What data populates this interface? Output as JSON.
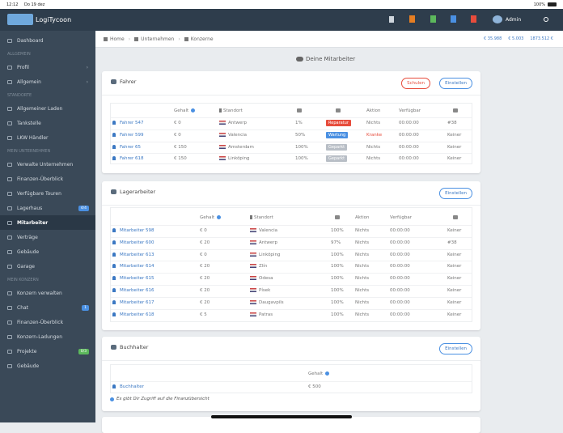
{
  "status_bar": {
    "time": "12:12",
    "date": "Do 19 dez",
    "battery": "100%"
  },
  "navbar": {
    "logo": "LogiTycoon",
    "user": "Admin"
  },
  "sidebar": [
    {
      "label": "Dashboard"
    },
    {
      "section": "ALLGEMEIN"
    },
    {
      "label": "Profil",
      "submenu": true
    },
    {
      "label": "Allgemein",
      "submenu": true
    },
    {
      "section": "STANDORTE"
    },
    {
      "label": "Allgemeiner Laden"
    },
    {
      "label": "Tankstelle"
    },
    {
      "label": "LKW Händler"
    },
    {
      "section": "MEIN UNTERNEHMEN"
    },
    {
      "label": "Verwalte Unternehmen"
    },
    {
      "label": "Finanzen-Überblick"
    },
    {
      "label": "Verfügbare Touren"
    },
    {
      "label": "Lagerhaus",
      "badge": "4/4",
      "badge_color": "#4a90e2"
    },
    {
      "label": "Mitarbeiter",
      "active": true
    },
    {
      "label": "Verträge"
    },
    {
      "label": "Gebäude"
    },
    {
      "label": "Garage"
    },
    {
      "section": "MEIN KONZERN"
    },
    {
      "label": "Konzern verwalten"
    },
    {
      "label": "Chat",
      "badge": "1",
      "badge_color": "#4a90e2"
    },
    {
      "label": "Finanzen-Überblick"
    },
    {
      "label": "Konzern-Ladungen"
    },
    {
      "label": "Projekte",
      "badge": "0/3",
      "badge_color": "#5cb85c"
    },
    {
      "label": "Gebäude"
    }
  ],
  "breadcrumb": [
    "Home",
    "Unternehmen",
    "Konzerne"
  ],
  "stats": [
    "€ 35.988",
    "€ 5.003",
    "1873.512 €"
  ],
  "page_title": "Deine Mitarbeiter",
  "drivers": {
    "title": "Fahrer",
    "buttons": [
      "Schulen",
      "Einstellen"
    ],
    "headers": {
      "salary": "Gehalt",
      "city": "Standort",
      "action": "Aktion",
      "available": "Verfügbar"
    },
    "rows": [
      {
        "name": "Fahrer 547",
        "salary": "€ 0",
        "city": "Antwerp",
        "condition": "1%",
        "status": "Reparatur",
        "status_color": "#e74c3c",
        "action": "Nichts",
        "available": "00:00:00",
        "assignment": "#38"
      },
      {
        "name": "Fahrer 599",
        "salary": "€ 0",
        "city": "Valencia",
        "condition": "50%",
        "status": "Wartung",
        "status_color": "#4a90e2",
        "action": "Kranke",
        "action_color": "#e74c3c",
        "available": "00:00:00",
        "assignment": "Keiner"
      },
      {
        "name": "Fahrer 65",
        "salary": "€ 150",
        "city": "Amsterdam",
        "condition": "100%",
        "status": "Geparkt",
        "status_color": "#b8bec6",
        "action": "Nichts",
        "available": "00:00:00",
        "assignment": "Keiner"
      },
      {
        "name": "Fahrer 618",
        "salary": "€ 150",
        "city": "Linköping",
        "condition": "100%",
        "status": "Geparkt",
        "status_color": "#b8bec6",
        "action": "Nichts",
        "available": "00:00:00",
        "assignment": "Keiner"
      }
    ]
  },
  "warehouse": {
    "title": "Lagerarbeiter",
    "button": "Einstellen",
    "headers": {
      "salary": "Gehalt",
      "city": "Standort",
      "action": "Aktion",
      "available": "Verfügbar"
    },
    "rows": [
      {
        "name": "Mitarbeiter 598",
        "salary": "€ 0",
        "city": "Valencia",
        "condition": "100%",
        "action": "Nichts",
        "available": "00:00:00",
        "assignment": "Keiner"
      },
      {
        "name": "Mitarbeiter 600",
        "salary": "€ 20",
        "city": "Antwerp",
        "condition": "97%",
        "action": "Nichts",
        "available": "00:00:00",
        "assignment": "#38"
      },
      {
        "name": "Mitarbeiter 613",
        "salary": "€ 0",
        "city": "Linköping",
        "condition": "100%",
        "action": "Nichts",
        "available": "00:00:00",
        "assignment": "Keiner"
      },
      {
        "name": "Mitarbeiter 614",
        "salary": "€ 20",
        "city": "Zlín",
        "condition": "100%",
        "action": "Nichts",
        "available": "00:00:00",
        "assignment": "Keiner"
      },
      {
        "name": "Mitarbeiter 615",
        "salary": "€ 20",
        "city": "Odesa",
        "condition": "100%",
        "action": "Nichts",
        "available": "00:00:00",
        "assignment": "Keiner"
      },
      {
        "name": "Mitarbeiter 616",
        "salary": "€ 20",
        "city": "Písek",
        "condition": "100%",
        "action": "Nichts",
        "available": "00:00:00",
        "assignment": "Keiner"
      },
      {
        "name": "Mitarbeiter 617",
        "salary": "€ 20",
        "city": "Daugavpils",
        "condition": "100%",
        "action": "Nichts",
        "available": "00:00:00",
        "assignment": "Keiner"
      },
      {
        "name": "Mitarbeiter 618",
        "salary": "€ 5",
        "city": "Patras",
        "condition": "100%",
        "action": "Nichts",
        "available": "00:00:00",
        "assignment": "Keiner"
      }
    ]
  },
  "accountant": {
    "title": "Buchhalter",
    "button": "Einstellen",
    "headers": {
      "salary": "Gehalt"
    },
    "rows": [
      {
        "name": "Buchhalter",
        "salary": "€ 500"
      }
    ],
    "note": "Es gibt Dir Zugriff auf die Finanzübersicht"
  }
}
